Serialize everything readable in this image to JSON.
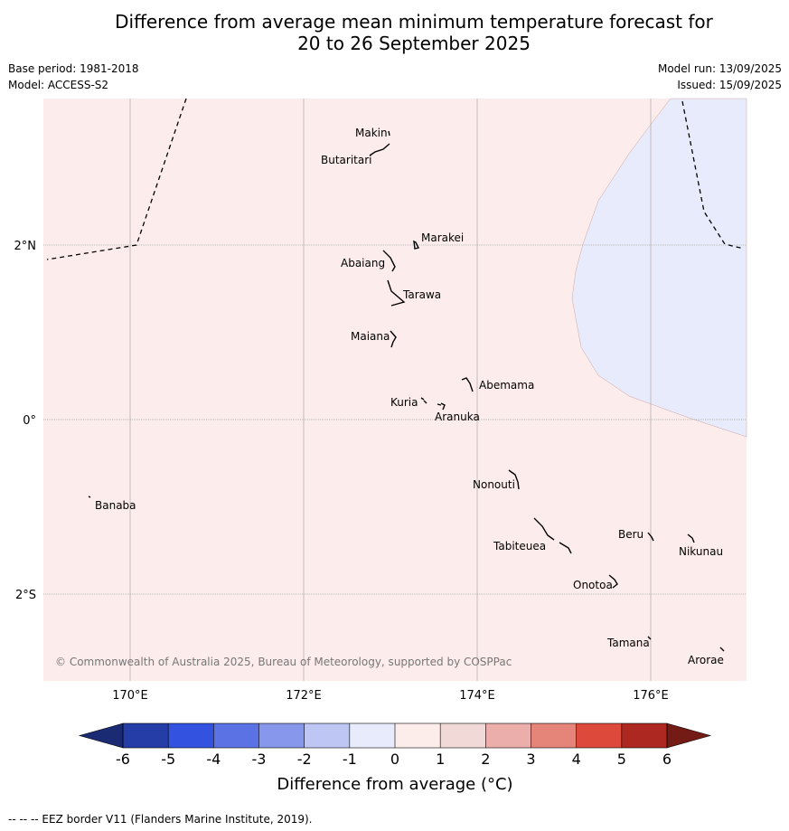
{
  "title_line1": "Difference from average mean minimum temperature forecast for",
  "title_line2": "20 to 26 September 2025",
  "base_period": "Base period: 1981-2018",
  "model": "Model: ACCESS-S2",
  "model_run": "Model run: 13/09/2025",
  "issued": "Issued: 15/09/2025",
  "map": {
    "lon_ticks": [
      {
        "lon": 170,
        "label": "170°E"
      },
      {
        "lon": 172,
        "label": "172°E"
      },
      {
        "lon": 174,
        "label": "174°E"
      },
      {
        "lon": 176,
        "label": "176°E"
      }
    ],
    "lat_ticks": [
      {
        "lat": 2,
        "label": "2°N"
      },
      {
        "lat": 0,
        "label": "0°"
      },
      {
        "lat": -2,
        "label": "2°S"
      }
    ],
    "background_color": "#fceceb",
    "cool_region_color": "#e8ebfb",
    "islands": [
      {
        "name": "Makin",
        "lon": 173.0,
        "lat": 3.35
      },
      {
        "name": "Butaritari",
        "lon": 172.85,
        "lat": 3.1
      },
      {
        "name": "Marakei",
        "lon": 173.35,
        "lat": 2.0
      },
      {
        "name": "Abaiang",
        "lon": 172.95,
        "lat": 1.8
      },
      {
        "name": "Tarawa",
        "lon": 173.05,
        "lat": 1.4
      },
      {
        "name": "Maiana",
        "lon": 173.0,
        "lat": 0.95
      },
      {
        "name": "Abemama",
        "lon": 173.9,
        "lat": 0.4
      },
      {
        "name": "Kuria",
        "lon": 173.4,
        "lat": 0.22
      },
      {
        "name": "Aranuka",
        "lon": 173.6,
        "lat": 0.17
      },
      {
        "name": "Banaba",
        "lon": 169.55,
        "lat": -0.88
      },
      {
        "name": "Nonouti",
        "lon": 174.4,
        "lat": -0.7
      },
      {
        "name": "Tabiteuea",
        "lon": 174.85,
        "lat": -1.3
      },
      {
        "name": "Beru",
        "lon": 176.0,
        "lat": -1.33
      },
      {
        "name": "Nikunau",
        "lon": 176.45,
        "lat": -1.35
      },
      {
        "name": "Onotoa",
        "lon": 175.55,
        "lat": -1.85
      },
      {
        "name": "Tamana",
        "lon": 175.95,
        "lat": -2.5
      },
      {
        "name": "Arorae",
        "lon": 176.8,
        "lat": -2.65
      }
    ],
    "copyright": "© Commonwealth of Australia 2025, Bureau of Meteorology, supported by COSPPac"
  },
  "colorbar": {
    "title": "Difference from average (°C)",
    "ticks": [
      "-6",
      "-5",
      "-4",
      "-3",
      "-2",
      "-1",
      "0",
      "1",
      "2",
      "3",
      "4",
      "5",
      "6"
    ],
    "colors": [
      "#253da6",
      "#3352e0",
      "#5b72e4",
      "#8797ec",
      "#bec7f4",
      "#e8ebfb",
      "#fcecea",
      "#f0d9d6",
      "#ecaeaa",
      "#e58478",
      "#dd4a3c",
      "#ae2822"
    ],
    "under_color": "#1a2a73",
    "over_color": "#741b15"
  },
  "footer": "--  --  -- EEZ border V11 (Flanders Marine Institute, 2019)."
}
